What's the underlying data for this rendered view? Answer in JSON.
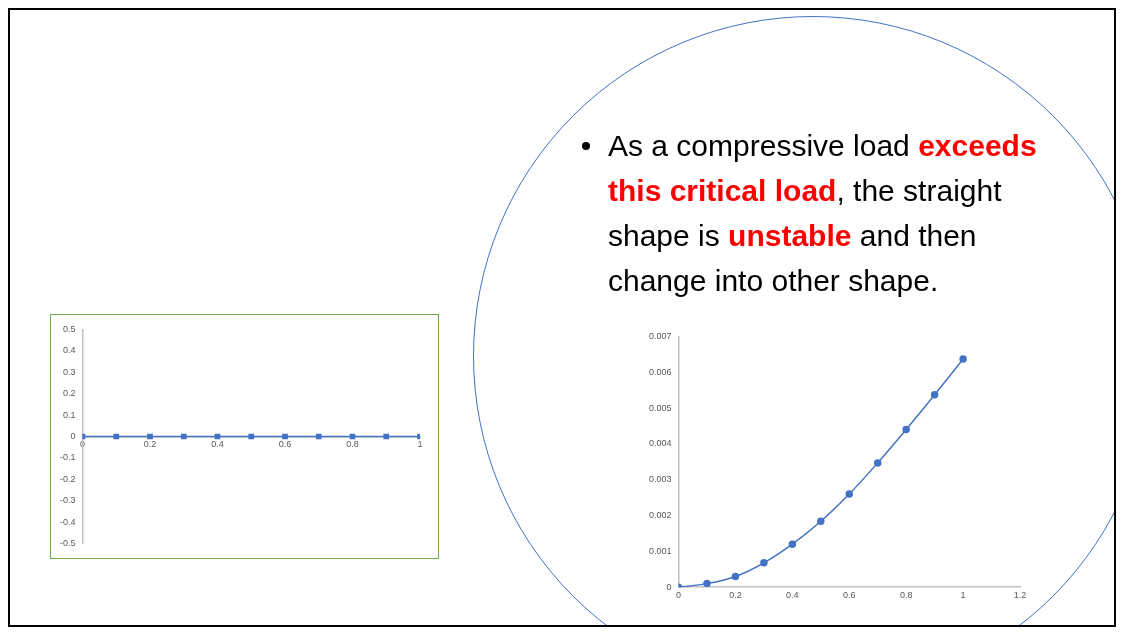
{
  "chart_data": [
    {
      "type": "line",
      "x": [
        0,
        0.1,
        0.2,
        0.3,
        0.4,
        0.5,
        0.6,
        0.7,
        0.8,
        0.9,
        1
      ],
      "series": [
        {
          "color": "#4472c4",
          "values": [
            0,
            0,
            0,
            0,
            0,
            0,
            0,
            0,
            0,
            0,
            0
          ]
        }
      ],
      "xlim": [
        0,
        1
      ],
      "xticks": [
        0,
        0.2,
        0.4,
        0.6,
        0.8,
        1
      ],
      "ylim": [
        -0.5,
        0.5
      ],
      "yticks": [
        -0.5,
        -0.4,
        -0.3,
        -0.2,
        -0.1,
        0,
        0.1,
        0.2,
        0.3,
        0.4,
        0.5
      ],
      "grid": false,
      "legend": false,
      "marker": "square",
      "line_style": "solid"
    },
    {
      "type": "other",
      "annotations": [
        "As a compressive load ",
        "exceeds this critical load",
        ", the straight shape is ",
        "unstable",
        " and then change into other shape."
      ]
    },
    {
      "type": "line",
      "x": [
        0,
        0.1,
        0.2,
        0.3,
        0.4,
        0.5,
        0.6,
        0.7,
        0.8,
        0.9,
        1
      ],
      "series": [
        {
          "color": "#4472c4",
          "values": [
            0,
            0.0001,
            0.0003,
            0.00068,
            0.0012,
            0.00184,
            0.0026,
            0.00347,
            0.0044,
            0.00537,
            0.00637
          ]
        }
      ],
      "xlim": [
        0,
        1.2
      ],
      "xticks": [
        0,
        0.2,
        0.4,
        0.6,
        0.8,
        1,
        1.2
      ],
      "ylim": [
        0,
        0.007
      ],
      "yticks": [
        0,
        0.001,
        0.002,
        0.003,
        0.004,
        0.005,
        0.006,
        0.007
      ],
      "grid": false,
      "legend": false,
      "marker": "circle",
      "line_style": "solid"
    }
  ]
}
